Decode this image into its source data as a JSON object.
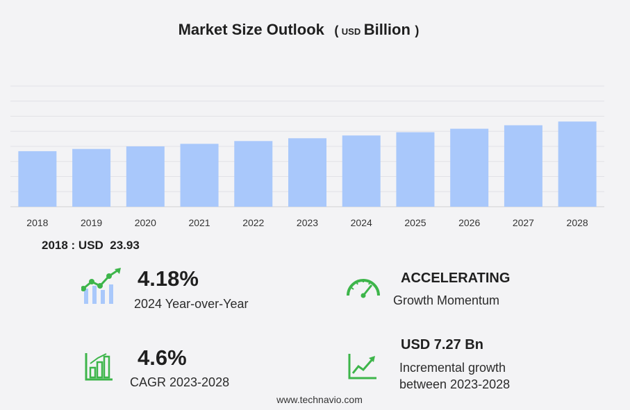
{
  "title": {
    "main": "Market Size Outlook",
    "open_paren": "(",
    "unit_small": "USD",
    "unit_large": "Billion",
    "close_paren": ")"
  },
  "chart_data": {
    "type": "bar",
    "categories": [
      "2018",
      "2019",
      "2020",
      "2021",
      "2022",
      "2023",
      "2024",
      "2025",
      "2026",
      "2027",
      "2028"
    ],
    "values": [
      23.93,
      24.9,
      26.0,
      27.1,
      28.3,
      29.5,
      30.7,
      32.1,
      33.6,
      35.1,
      36.7
    ],
    "ylim": [
      0,
      52
    ],
    "grid": true,
    "bar_color": "#a9c8fb"
  },
  "base_value": "2018 : USD  23.93",
  "stats": {
    "yoy_value": "4.18%",
    "yoy_label": "2024 Year-over-Year",
    "momentum_value": "ACCELERATING",
    "momentum_label": "Growth Momentum",
    "cagr_value": "4.6%",
    "cagr_label": "CAGR 2023-2028",
    "incr_value": "USD 7.27 Bn",
    "incr_label_1": "Incremental growth",
    "incr_label_2": "between 2023-2028"
  },
  "icons": {
    "yoy": "bar-trend-icon",
    "momentum": "speedometer-icon",
    "cagr": "bar-chart-icon",
    "incr": "line-growth-icon",
    "accent": "#3db54a"
  },
  "footer": "www.technavio.com"
}
